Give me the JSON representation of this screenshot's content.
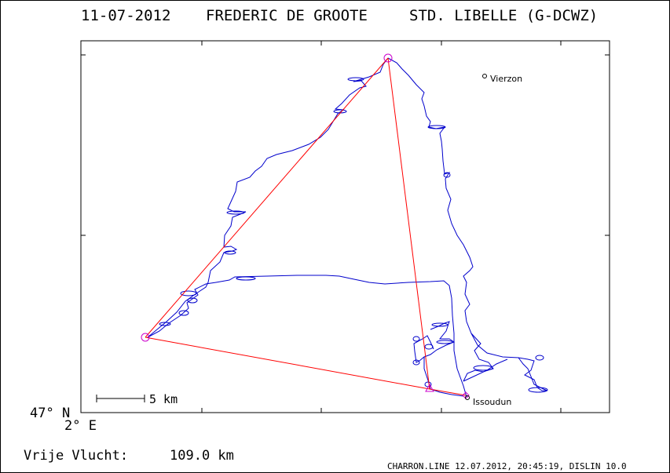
{
  "title": {
    "date": "11-07-2012",
    "pilot": "FREDERIC DE GROOTE",
    "glider": "STD. LIBELLE (G-DCWZ)"
  },
  "map": {
    "lat_label": "47° N",
    "lon_label": "2° E",
    "scale_label": "5 km",
    "places": [
      {
        "name": "Vierzon",
        "marker": "circle"
      },
      {
        "name": "Issoudun",
        "marker": "circle"
      }
    ]
  },
  "footer": {
    "distance_label": "Vrije Vlucht:",
    "distance_value": "109.0 km",
    "credit": "CHARRON.LINE 12.07.2012, 20:45:19, DISLIN 10.0"
  },
  "colors": {
    "track": "#0000cc",
    "task_line": "#ff0000",
    "turnpoint": "#cc00cc",
    "frame": "#000000"
  }
}
